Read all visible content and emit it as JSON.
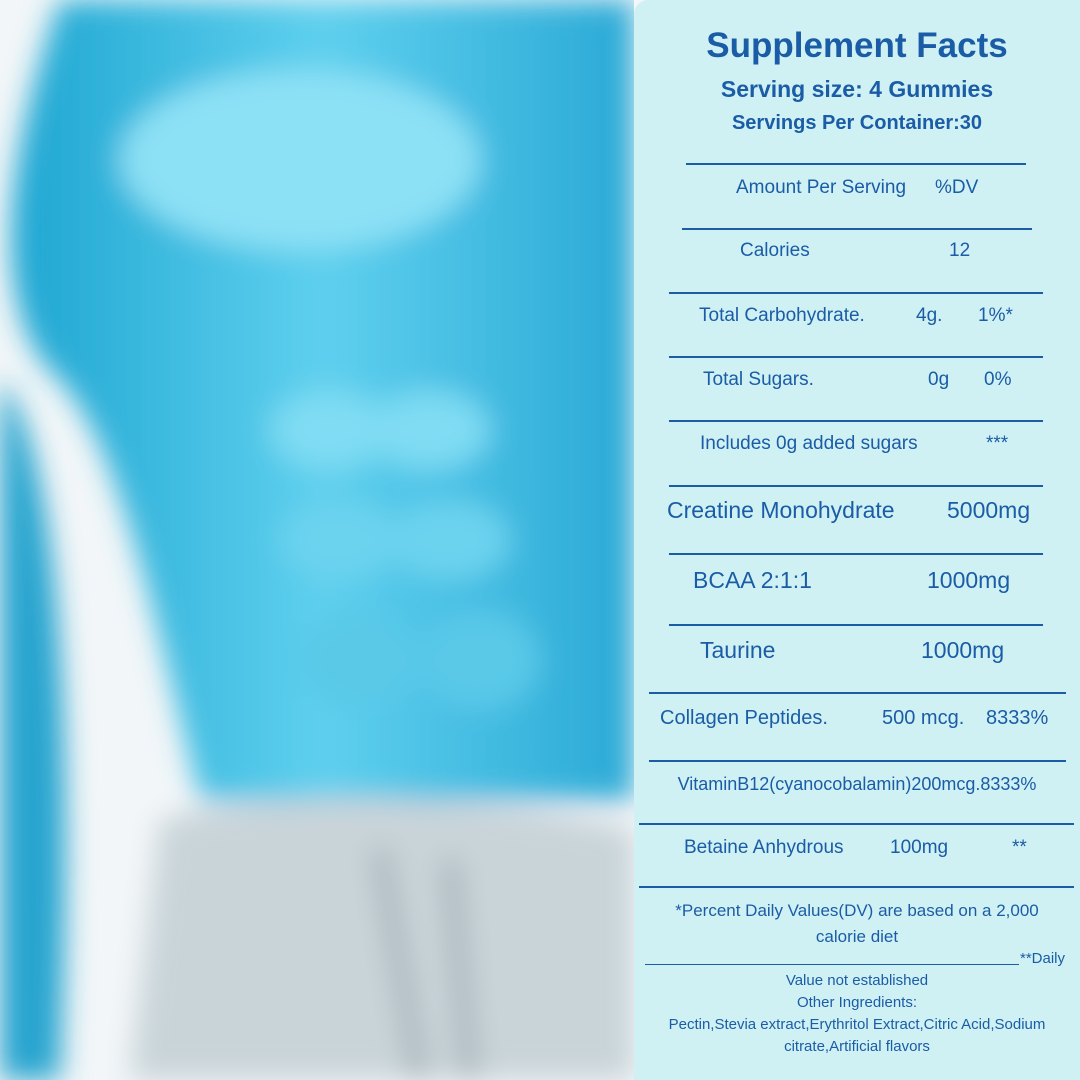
{
  "header": {
    "title": "Supplement Facts",
    "serving_size": "Serving size: 4 Gummies",
    "servings_per_container": "Servings Per Container:30"
  },
  "rows": [
    [
      "Amount Per Serving",
      "%DV"
    ],
    [
      "Calories",
      "12"
    ],
    [
      "Total Carbohydrate.",
      "4g.",
      "1%*"
    ],
    [
      "Total Sugars.",
      "0g",
      "0%"
    ],
    [
      "Includes 0g added sugars",
      "***"
    ],
    [
      "Creatine Monohydrate",
      "5000mg"
    ],
    [
      "BCAA 2:1:1",
      "1000mg"
    ],
    [
      "Taurine",
      "1000mg"
    ],
    [
      "Collagen Peptides.",
      "500 mcg.",
      "8333%"
    ],
    [
      "VitaminB12(cyanocobalamin)200mcg.8333%"
    ],
    [
      "Betaine Anhydrous",
      "100mg",
      "**"
    ]
  ],
  "footer": {
    "dv_note": "*Percent Daily Values(DV) are based on a 2,000 calorie diet",
    "daily_marker": "**Daily",
    "not_established": "Value not established",
    "other_ingredients_label": "Other Ingredients:",
    "other_ingredients": "Pectin,Stevia extract,Erythritol Extract,Citric Acid,Sodium citrate,Artificial flavors"
  }
}
